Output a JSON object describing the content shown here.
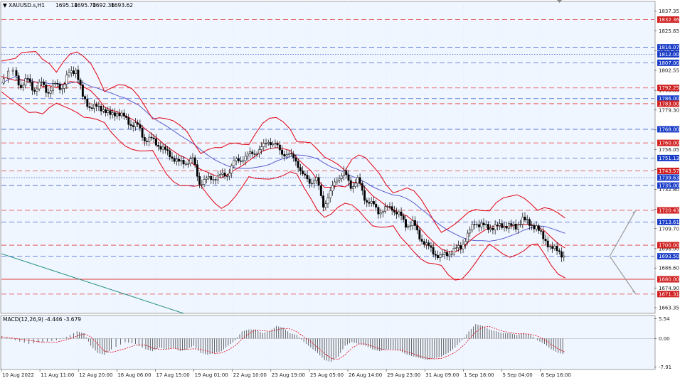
{
  "chart_data": {
    "type": "candlestick",
    "symbol_label": "▼ XAUUSD.s,H1",
    "ohlc": [
      "1695.14",
      "1695.70",
      "1692.36",
      "1693.62"
    ],
    "colors": {
      "background": "#f0f6ff",
      "grid": "#cfd8e8",
      "candle": "#000000",
      "bollinger": "#e0000f",
      "ma": "#4a50c8",
      "red_level": "#e23a3a",
      "blue_level": "#4060d8",
      "trendline": "#1a8c7c",
      "arrow": "#9a9a9a",
      "macd_hist": "#555555",
      "macd_signal": "#e0000f"
    },
    "price_axis": {
      "ylim": [
        1660,
        1843
      ],
      "ticks": [
        "1837.35",
        "1825.65",
        "1813.95",
        "1802.55",
        "1790.85",
        "1779.30",
        "1767.60",
        "1756.05",
        "1744.35",
        "1732.80",
        "1721.10",
        "1709.70",
        "1698.00",
        "1686.60",
        "1674.90",
        "1663.35"
      ],
      "tick_values": [
        1837.35,
        1825.65,
        1813.95,
        1802.55,
        1790.85,
        1779.3,
        1767.6,
        1756.05,
        1744.35,
        1732.8,
        1721.1,
        1709.7,
        1698.0,
        1686.6,
        1674.9,
        1663.35
      ]
    },
    "levels": [
      {
        "price": 1832.36,
        "label": "1832.36",
        "color": "red",
        "style": "dashed"
      },
      {
        "price": 1816.07,
        "label": "1816.07",
        "color": "blue",
        "style": "dashed"
      },
      {
        "price": 1812.0,
        "label": "1812.00",
        "color": "blue",
        "style": "dotted"
      },
      {
        "price": 1807.0,
        "label": "1807.00",
        "color": "blue",
        "style": "dashed"
      },
      {
        "price": 1792.25,
        "label": "1792.25",
        "color": "red",
        "style": "dashed"
      },
      {
        "price": 1786.0,
        "label": "1786.00",
        "color": "blue",
        "style": "dashed"
      },
      {
        "price": 1783.0,
        "label": "1783.00",
        "color": "red",
        "style": "dashed"
      },
      {
        "price": 1768.0,
        "label": "1768.00",
        "color": "blue",
        "style": "dashed"
      },
      {
        "price": 1760.0,
        "label": "1760.00",
        "color": "red",
        "style": "dashed"
      },
      {
        "price": 1751.13,
        "label": "1751.13",
        "color": "blue",
        "style": "dashed"
      },
      {
        "price": 1743.57,
        "label": "1743.57",
        "color": "red",
        "style": "dashed"
      },
      {
        "price": 1739.63,
        "label": "1739.63",
        "color": "blue",
        "style": "dotted"
      },
      {
        "price": 1735.0,
        "label": "1735.00",
        "color": "blue",
        "style": "dashed"
      },
      {
        "price": 1720.43,
        "label": "1720.43",
        "color": "red",
        "style": "dashed"
      },
      {
        "price": 1713.61,
        "label": "1713.61",
        "color": "blue",
        "style": "dashed"
      },
      {
        "price": 1700.0,
        "label": "1700.00",
        "color": "red",
        "style": "dashed"
      },
      {
        "price": 1693.5,
        "label": "1693.50",
        "color": "blue",
        "style": "dashed"
      },
      {
        "price": 1680.0,
        "label": "1680.00",
        "color": "red",
        "style": "solid"
      },
      {
        "price": 1671.31,
        "label": "1671.31",
        "color": "red",
        "style": "dashed"
      }
    ],
    "close_path": [
      [
        0,
        1795
      ],
      [
        2,
        1803
      ],
      [
        3,
        1792
      ],
      [
        4,
        1798
      ],
      [
        5,
        1790
      ],
      [
        6,
        1796
      ],
      [
        7,
        1789
      ],
      [
        8,
        1795
      ],
      [
        9,
        1792
      ],
      [
        10,
        1801
      ],
      [
        11,
        1803
      ],
      [
        12,
        1787
      ],
      [
        13,
        1781
      ],
      [
        14,
        1781
      ],
      [
        15,
        1780
      ],
      [
        16,
        1776
      ],
      [
        17,
        1778
      ],
      [
        18,
        1775
      ],
      [
        19,
        1771
      ],
      [
        20,
        1770
      ],
      [
        21,
        1762
      ],
      [
        22,
        1762
      ],
      [
        23,
        1759
      ],
      [
        24,
        1755
      ],
      [
        25,
        1752
      ],
      [
        26,
        1748
      ],
      [
        27,
        1749
      ],
      [
        28,
        1750
      ],
      [
        29,
        1737
      ],
      [
        30,
        1738
      ],
      [
        31,
        1740
      ],
      [
        32,
        1740
      ],
      [
        33,
        1742
      ],
      [
        34,
        1748
      ],
      [
        35,
        1751
      ],
      [
        36,
        1752
      ],
      [
        37,
        1755
      ],
      [
        38,
        1756
      ],
      [
        39,
        1762
      ],
      [
        40,
        1758
      ],
      [
        41,
        1755
      ],
      [
        42,
        1752
      ],
      [
        43,
        1751
      ],
      [
        44,
        1740
      ],
      [
        45,
        1738
      ],
      [
        46,
        1738
      ],
      [
        47,
        1724
      ],
      [
        48,
        1730
      ],
      [
        49,
        1740
      ],
      [
        50,
        1742
      ],
      [
        51,
        1735
      ],
      [
        52,
        1738
      ],
      [
        53,
        1728
      ],
      [
        54,
        1724
      ],
      [
        55,
        1720
      ],
      [
        56,
        1721
      ],
      [
        57,
        1722
      ],
      [
        58,
        1718
      ],
      [
        59,
        1712
      ],
      [
        60,
        1713
      ],
      [
        61,
        1705
      ],
      [
        62,
        1700
      ],
      [
        63,
        1696
      ],
      [
        64,
        1693
      ],
      [
        65,
        1695
      ],
      [
        66,
        1697
      ],
      [
        67,
        1699
      ],
      [
        68,
        1706
      ],
      [
        69,
        1713
      ],
      [
        70,
        1712
      ],
      [
        71,
        1710
      ],
      [
        72,
        1711
      ],
      [
        73,
        1711
      ],
      [
        74,
        1712
      ],
      [
        75,
        1710
      ],
      [
        76,
        1716
      ],
      [
        77,
        1712
      ],
      [
        78,
        1711
      ],
      [
        79,
        1704
      ],
      [
        80,
        1699
      ],
      [
        81,
        1697
      ],
      [
        82,
        1693.6
      ]
    ],
    "x_axis": {
      "ticks": [
        "10 Aug 2022",
        "11 Aug 11:00",
        "12 Aug 20:00",
        "16 Aug 06:00",
        "17 Aug 15:00",
        "19 Aug 01:00",
        "22 Aug 10:00",
        "23 Aug 19:00",
        "25 Aug 05:00",
        "26 Aug 14:00",
        "29 Aug 23:00",
        "31 Aug 09:00",
        "1 Sep 18:00",
        "5 Sep 04:00",
        "6 Sep 16:00"
      ],
      "tick_values": [
        0,
        5.6,
        11.2,
        16.8,
        22.4,
        28,
        33.6,
        39.2,
        44.8,
        50.4,
        56,
        61.6,
        67.2,
        72.8,
        78.4
      ],
      "xlim": [
        0,
        95
      ]
    },
    "macd": {
      "label": "MACD(12,26,9) -4.446 -3.679",
      "ticks": [
        "5.54",
        "0.00",
        "-7.91"
      ],
      "tick_values": [
        5.54,
        0,
        -7.91
      ],
      "ylim": [
        -8.6,
        6.4
      ],
      "histogram": [
        [
          0,
          0.5
        ],
        [
          2,
          -0.5
        ],
        [
          4,
          -1.5
        ],
        [
          6,
          -1.0
        ],
        [
          8,
          -0.5
        ],
        [
          9.5,
          0.5
        ],
        [
          11,
          2.0
        ],
        [
          12,
          1.5
        ],
        [
          13,
          -2.0
        ],
        [
          14,
          -4.0
        ],
        [
          15,
          -4.5
        ],
        [
          16,
          -3.0
        ],
        [
          18,
          -1.0
        ],
        [
          19.5,
          -1.5
        ],
        [
          21,
          -3.0
        ],
        [
          22,
          -3.5
        ],
        [
          23,
          -2.5
        ],
        [
          24,
          -3.0
        ],
        [
          25,
          -2.5
        ],
        [
          26,
          -3.5
        ],
        [
          27,
          -3.0
        ],
        [
          28,
          -2.0
        ],
        [
          29,
          -4.0
        ],
        [
          30,
          -4.5
        ],
        [
          31,
          -4.0
        ],
        [
          32,
          -3.5
        ],
        [
          33,
          -2.0
        ],
        [
          34,
          -0.5
        ],
        [
          35,
          2.0
        ],
        [
          36,
          2.5
        ],
        [
          37,
          2.5
        ],
        [
          38,
          1.5
        ],
        [
          39,
          2.0
        ],
        [
          40,
          3.5
        ],
        [
          41,
          3.0
        ],
        [
          42,
          1.5
        ],
        [
          43,
          1.0
        ],
        [
          44,
          -1.0
        ],
        [
          45,
          -2.5
        ],
        [
          46,
          -4.0
        ],
        [
          47,
          -6.0
        ],
        [
          48,
          -6.5
        ],
        [
          49,
          -5.0
        ],
        [
          50,
          -2.0
        ],
        [
          51,
          -1.0
        ],
        [
          52,
          -1.5
        ],
        [
          53,
          -2.0
        ],
        [
          54,
          -3.0
        ],
        [
          55,
          -3.5
        ],
        [
          56,
          -3.0
        ],
        [
          57,
          -3.0
        ],
        [
          58,
          -3.5
        ],
        [
          59,
          -4.5
        ],
        [
          60,
          -5.0
        ],
        [
          61,
          -5.5
        ],
        [
          62,
          -6.0
        ],
        [
          63,
          -5.5
        ],
        [
          64,
          -5.0
        ],
        [
          65,
          -4.0
        ],
        [
          66,
          -2.5
        ],
        [
          67,
          -0.5
        ],
        [
          68,
          2.0
        ],
        [
          69,
          4.0
        ],
        [
          70,
          3.5
        ],
        [
          71,
          2.5
        ],
        [
          72,
          2.0
        ],
        [
          73,
          1.5
        ],
        [
          74,
          1.5
        ],
        [
          75,
          1.0
        ],
        [
          76,
          1.5
        ],
        [
          77,
          1.0
        ],
        [
          78,
          -0.5
        ],
        [
          79,
          -1.5
        ],
        [
          80,
          -3.0
        ],
        [
          81,
          -4.0
        ],
        [
          82,
          -4.4
        ]
      ]
    }
  }
}
